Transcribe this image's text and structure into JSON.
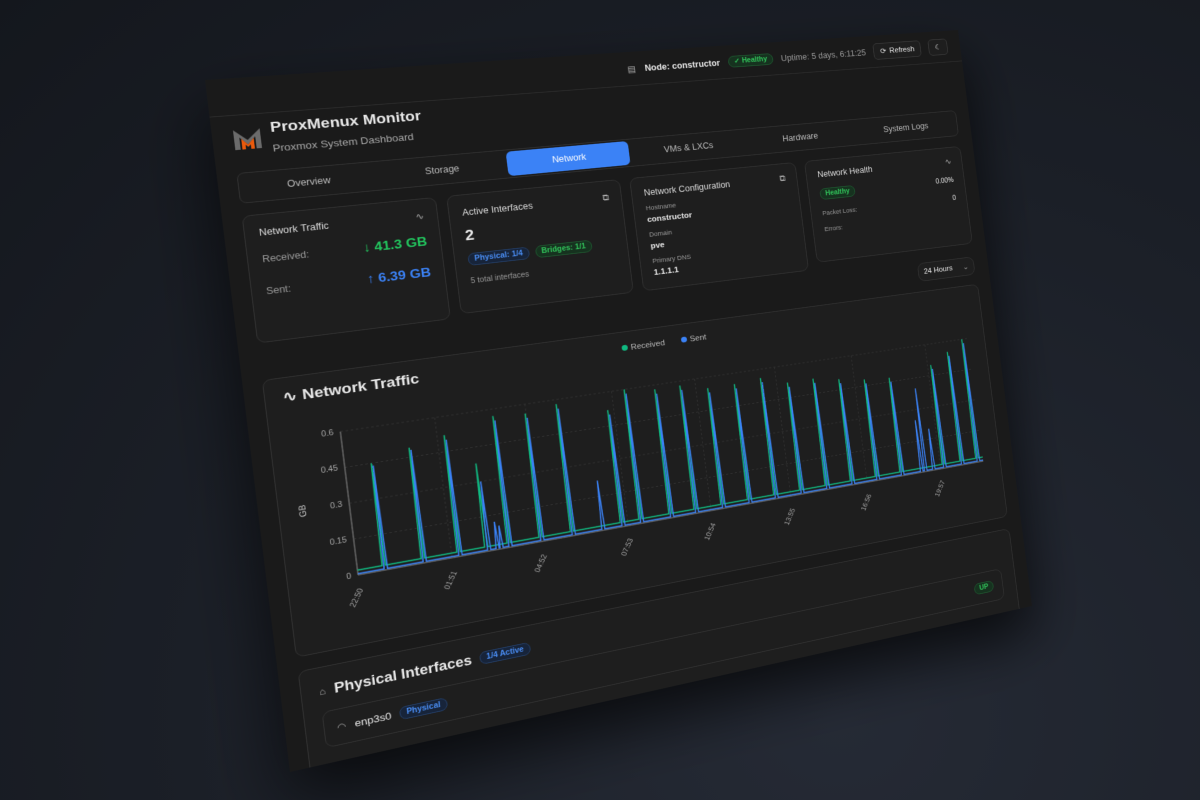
{
  "header": {
    "node_label": "Node: constructor",
    "status": "Healthy",
    "uptime": "Uptime: 5 days, 6:11:25",
    "refresh_label": "Refresh",
    "app_title": "ProxMenux Monitor",
    "app_subtitle": "Proxmox System Dashboard"
  },
  "tabs": [
    {
      "label": "Overview",
      "active": false
    },
    {
      "label": "Storage",
      "active": false
    },
    {
      "label": "Network",
      "active": true
    },
    {
      "label": "VMs & LXCs",
      "active": false
    },
    {
      "label": "Hardware",
      "active": false
    },
    {
      "label": "System Logs",
      "active": false
    }
  ],
  "cards": {
    "traffic": {
      "title": "Network Traffic",
      "received_label": "Received:",
      "received": "↓ 41.3 GB",
      "sent_label": "Sent:",
      "sent": "↑ 6.39 GB"
    },
    "interfaces": {
      "title": "Active Interfaces",
      "count": "2",
      "physical": "Physical: 1/4",
      "bridges": "Bridges: 1/1",
      "total": "5 total interfaces"
    },
    "config": {
      "title": "Network Configuration",
      "hostname_label": "Hostname",
      "hostname": "constructor",
      "domain_label": "Domain",
      "domain": "pve",
      "dns_label": "Primary DNS",
      "dns": "1.1.1.1"
    },
    "health": {
      "title": "Network Health",
      "status": "Healthy",
      "packet_loss_label": "Packet Loss:",
      "packet_loss": "0.00%",
      "errors_label": "Errors:",
      "errors": "0"
    }
  },
  "time_range": "24 Hours",
  "chart_title": "Network Traffic",
  "chart_data": {
    "type": "line",
    "ylabel": "GB",
    "ylim": [
      0,
      0.6
    ],
    "yticks": [
      "0",
      "0.15",
      "0.3",
      "0.45",
      "0.6"
    ],
    "xticks": [
      "22:50",
      "01:51",
      "04:52",
      "07:53",
      "10:54",
      "13:55",
      "16:56",
      "19:57"
    ],
    "xrange": [
      "22:50",
      "21:45"
    ],
    "grid": true,
    "legend_position": "top-center",
    "colors": {
      "Received": "#10b981",
      "Sent": "#3b82f6"
    },
    "series": [
      {
        "name": "Received",
        "baseline": 0.02,
        "spikes": [
          [
            "23:40",
            0.45
          ],
          [
            "00:55",
            0.49
          ],
          [
            "02:05",
            0.52
          ],
          [
            "03:00",
            0.38
          ],
          [
            "03:45",
            0.57
          ],
          [
            "04:50",
            0.56
          ],
          [
            "05:55",
            0.58
          ],
          [
            "07:40",
            0.52
          ],
          [
            "08:20",
            0.6
          ],
          [
            "09:25",
            0.58
          ],
          [
            "10:20",
            0.58
          ],
          [
            "11:20",
            0.55
          ],
          [
            "12:20",
            0.55
          ],
          [
            "13:20",
            0.56
          ],
          [
            "14:20",
            0.52
          ],
          [
            "15:20",
            0.52
          ],
          [
            "16:20",
            0.5
          ],
          [
            "17:20",
            0.48
          ],
          [
            "18:20",
            0.47
          ],
          [
            "20:05",
            0.5
          ],
          [
            "20:50",
            0.55
          ],
          [
            "21:30",
            0.6
          ]
        ]
      },
      {
        "name": "Sent",
        "baseline": 0.005,
        "spikes": [
          [
            "23:43",
            0.44
          ],
          [
            "00:58",
            0.48
          ],
          [
            "02:08",
            0.5
          ],
          [
            "03:05",
            0.3
          ],
          [
            "03:22",
            0.12
          ],
          [
            "03:30",
            0.1
          ],
          [
            "03:48",
            0.55
          ],
          [
            "04:53",
            0.54
          ],
          [
            "05:58",
            0.56
          ],
          [
            "07:00",
            0.22
          ],
          [
            "07:43",
            0.5
          ],
          [
            "08:23",
            0.58
          ],
          [
            "09:28",
            0.56
          ],
          [
            "10:23",
            0.56
          ],
          [
            "11:23",
            0.53
          ],
          [
            "12:23",
            0.53
          ],
          [
            "13:23",
            0.54
          ],
          [
            "14:23",
            0.5
          ],
          [
            "15:23",
            0.5
          ],
          [
            "16:23",
            0.48
          ],
          [
            "17:23",
            0.46
          ],
          [
            "18:23",
            0.45
          ],
          [
            "19:10",
            0.25
          ],
          [
            "19:20",
            0.4
          ],
          [
            "19:40",
            0.2
          ],
          [
            "20:08",
            0.48
          ],
          [
            "20:53",
            0.53
          ],
          [
            "21:33",
            0.58
          ]
        ]
      }
    ]
  },
  "physical": {
    "title": "Physical Interfaces",
    "badge": "1/4 Active",
    "iface_name": "enp3s0",
    "iface_type": "Physical",
    "iface_status": "UP"
  }
}
